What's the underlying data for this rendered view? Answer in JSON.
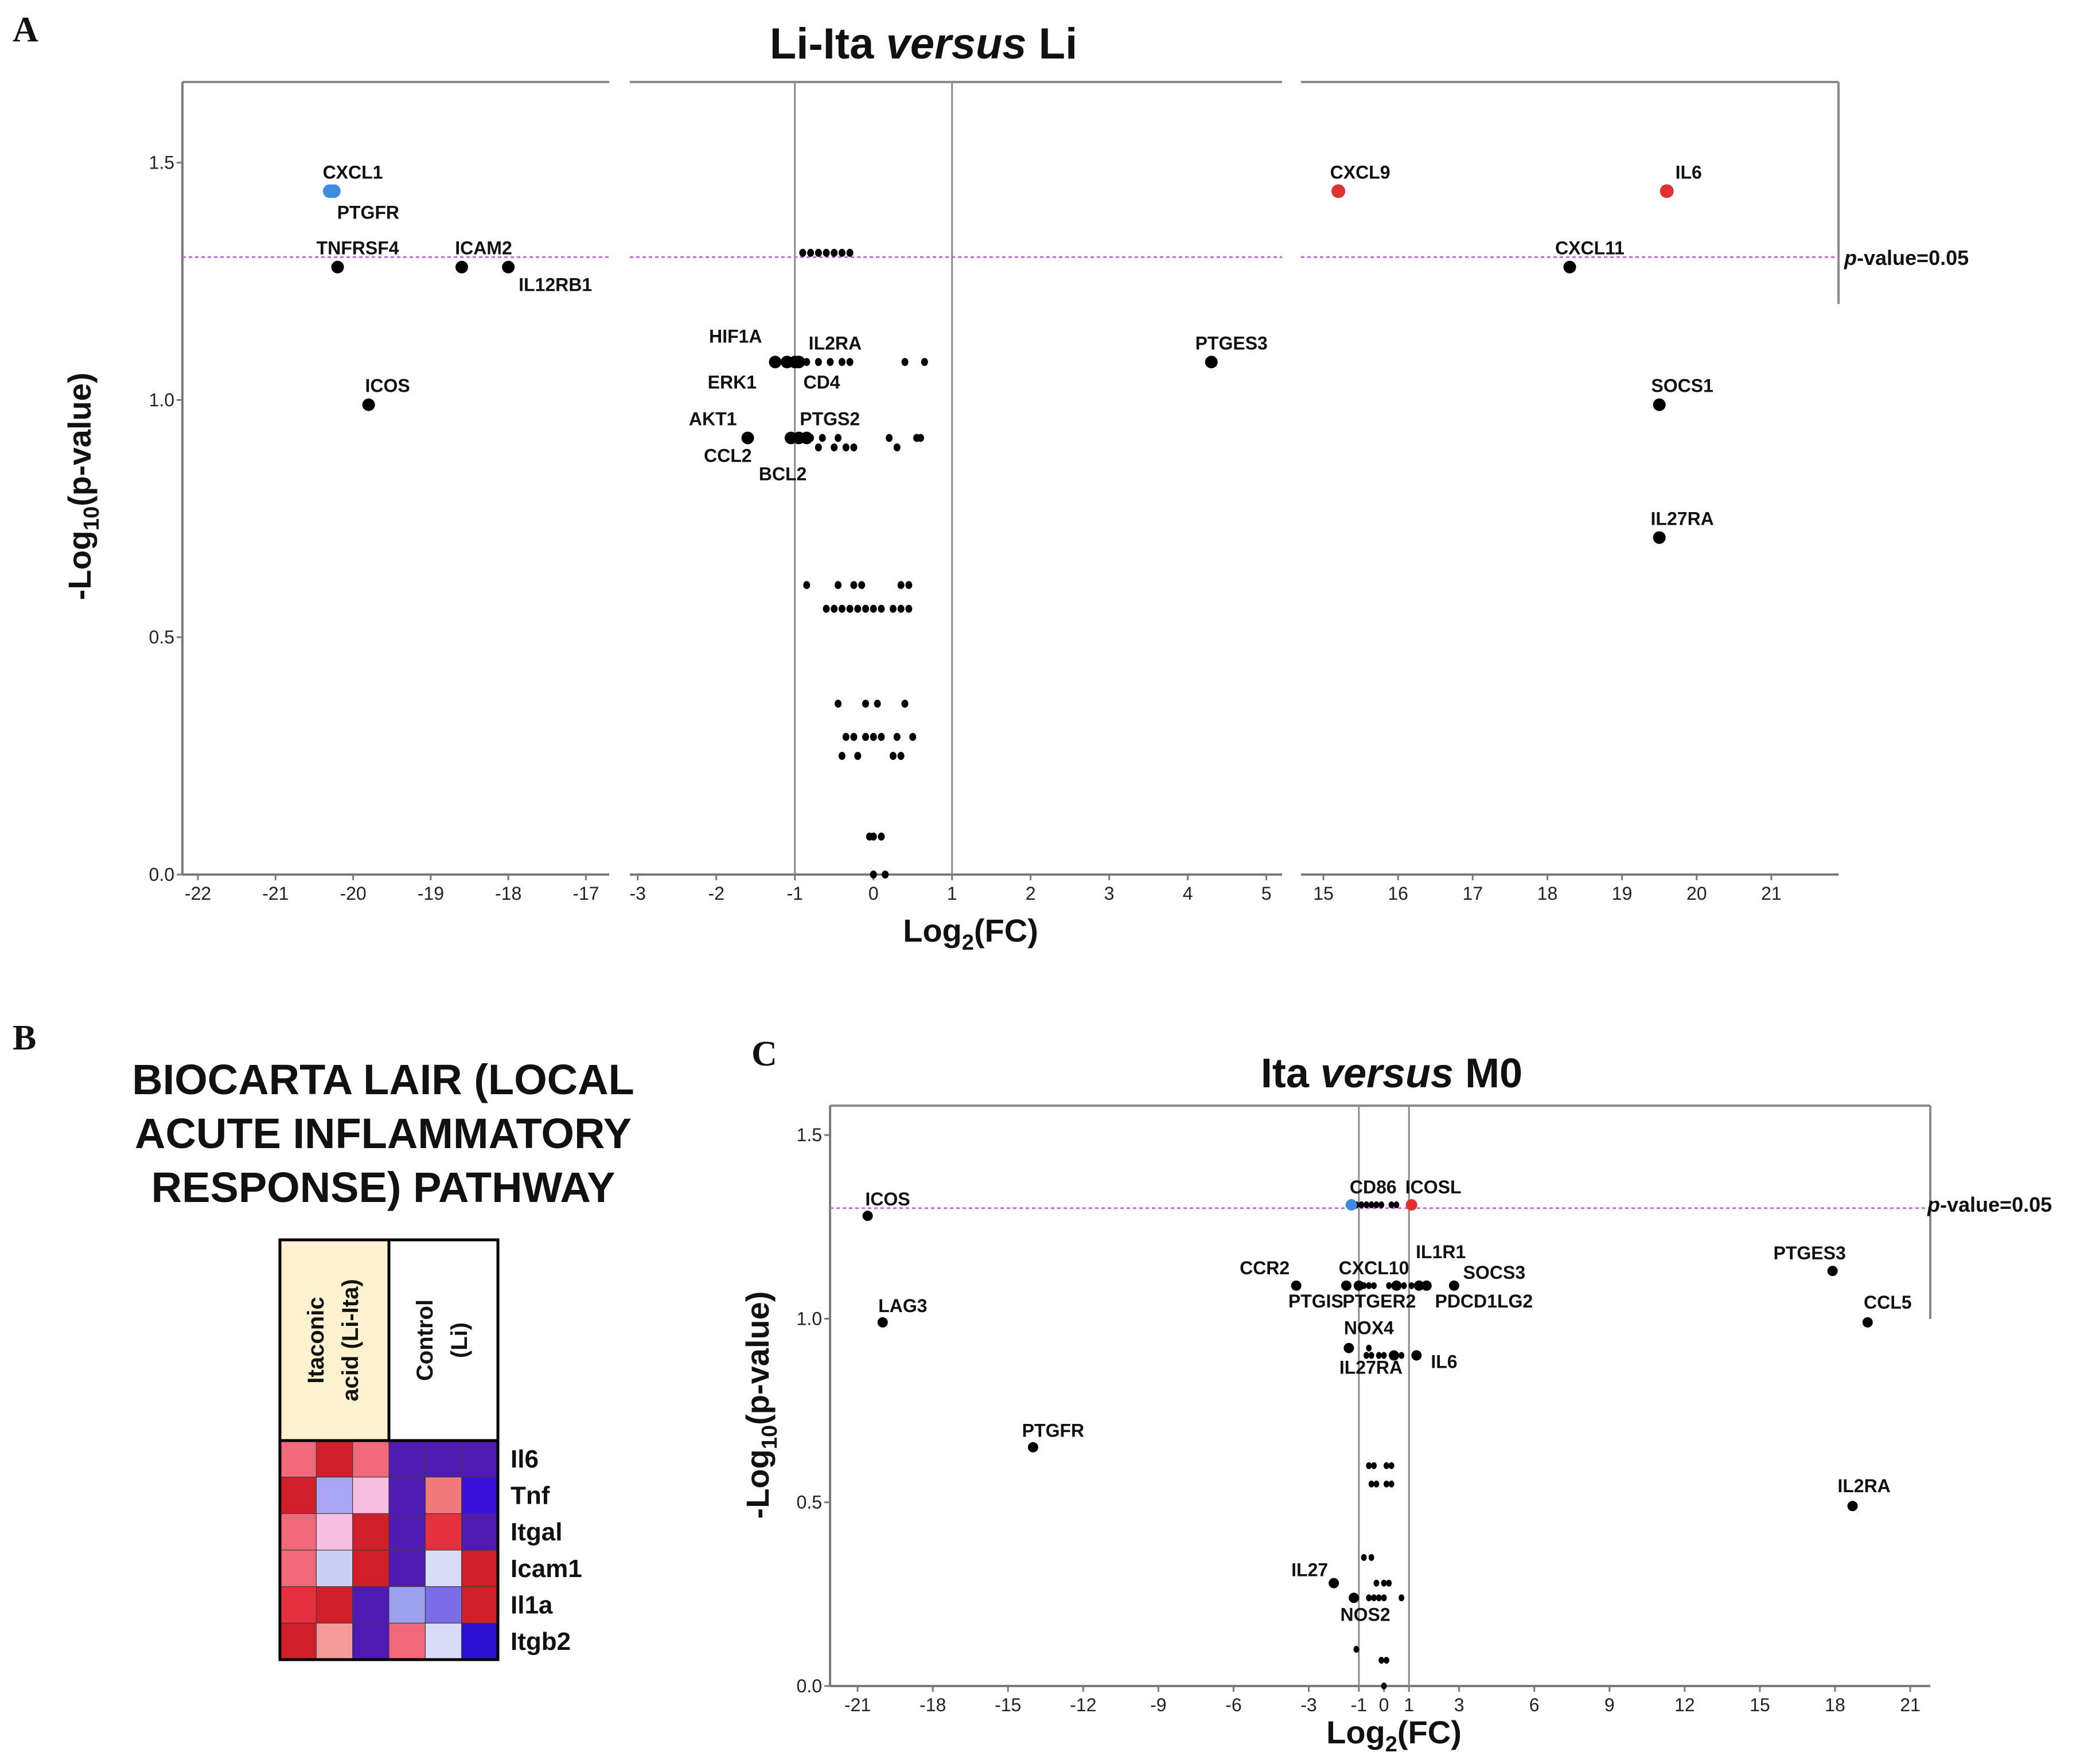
{
  "panel_labels": {
    "a": "A",
    "b": "B",
    "c": "C"
  },
  "colors": {
    "sig_down": "#3d8ce0",
    "sig_up": "#e03131",
    "point": "#000000",
    "threshold": "#c26bd9",
    "fc_line": "#8c8c8c",
    "heat_header_bg": "#fdf2d0"
  },
  "chart_data": [
    {
      "id": "A",
      "type": "scatter",
      "title": {
        "pre": "Li-Ita ",
        "italic": "versus",
        "post": " Li"
      },
      "xlabel": {
        "main": "Log",
        "sub": "2",
        "post": "(FC)"
      },
      "ylabel": {
        "pre": "-Log",
        "sub": "10",
        "post": "(p-value)"
      },
      "ylim": [
        0,
        1.67
      ],
      "yticks": [
        "0.0",
        "0.5",
        "1.0",
        "1.5"
      ],
      "grid": false,
      "broken_x_axis": true,
      "x_segments": [
        {
          "range": [
            -22.2,
            -16.7
          ],
          "ticks": [
            -22,
            -21,
            -20,
            -19,
            -18,
            -17
          ]
        },
        {
          "range": [
            -3.1,
            5.2
          ],
          "ticks": [
            -3,
            -2,
            -1,
            0,
            1,
            2,
            3,
            4,
            5
          ]
        },
        {
          "range": [
            14.7,
            21.9
          ],
          "ticks": [
            15,
            16,
            17,
            18,
            19,
            20,
            21
          ]
        }
      ],
      "fc_lines": [
        -1,
        1
      ],
      "threshold": {
        "y": 1.301,
        "label_italic": "p",
        "label_rest": "-value=0.05"
      },
      "points": {
        "significant_down": [
          {
            "x": -20.3,
            "y": 1.44,
            "label": "CXCL1"
          },
          {
            "x": -20.25,
            "y": 1.44,
            "label": "PTGFR"
          }
        ],
        "significant_up": [
          {
            "x": 15.2,
            "y": 1.44,
            "label": "CXCL9"
          },
          {
            "x": 19.6,
            "y": 1.44,
            "label": "IL6"
          }
        ],
        "labeled": [
          {
            "x": -20.2,
            "y": 1.28,
            "label": "TNFRSF4"
          },
          {
            "x": -18.6,
            "y": 1.28,
            "label": "ICAM2"
          },
          {
            "x": -18.0,
            "y": 1.28,
            "label": "IL12RB1"
          },
          {
            "x": -19.8,
            "y": 0.99,
            "label": "ICOS"
          },
          {
            "x": -1.25,
            "y": 1.08,
            "label": "HIF1A"
          },
          {
            "x": -1.1,
            "y": 1.08,
            "label": "ERK1"
          },
          {
            "x": -1.0,
            "y": 1.08,
            "label": "IL2RA"
          },
          {
            "x": -0.95,
            "y": 1.08,
            "label": "CD4"
          },
          {
            "x": -1.6,
            "y": 0.92,
            "label": "AKT1"
          },
          {
            "x": -1.05,
            "y": 0.92,
            "label": "CCL2"
          },
          {
            "x": -0.95,
            "y": 0.92,
            "label": "BCL2"
          },
          {
            "x": -0.85,
            "y": 0.92,
            "label": "PTGS2"
          },
          {
            "x": 4.3,
            "y": 1.08,
            "label": "PTGES3"
          },
          {
            "x": 18.3,
            "y": 1.28,
            "label": "CXCL11"
          },
          {
            "x": 19.5,
            "y": 0.99,
            "label": "SOCS1"
          },
          {
            "x": 19.5,
            "y": 0.71,
            "label": "IL27RA"
          }
        ],
        "unlabeled": [
          {
            "x": -0.9,
            "y": 1.31
          },
          {
            "x": -0.8,
            "y": 1.31
          },
          {
            "x": -0.7,
            "y": 1.31
          },
          {
            "x": -0.6,
            "y": 1.31
          },
          {
            "x": -0.5,
            "y": 1.31
          },
          {
            "x": -0.4,
            "y": 1.31
          },
          {
            "x": -0.3,
            "y": 1.31
          },
          {
            "x": -0.85,
            "y": 1.08
          },
          {
            "x": -0.7,
            "y": 1.08
          },
          {
            "x": -0.55,
            "y": 1.08
          },
          {
            "x": -0.4,
            "y": 1.08
          },
          {
            "x": -0.3,
            "y": 1.08
          },
          {
            "x": 0.4,
            "y": 1.08
          },
          {
            "x": 0.65,
            "y": 1.08
          },
          {
            "x": -0.8,
            "y": 0.92
          },
          {
            "x": -0.65,
            "y": 0.92
          },
          {
            "x": -0.45,
            "y": 0.92
          },
          {
            "x": 0.2,
            "y": 0.92
          },
          {
            "x": 0.55,
            "y": 0.92
          },
          {
            "x": 0.6,
            "y": 0.92
          },
          {
            "x": -0.7,
            "y": 0.9
          },
          {
            "x": -0.5,
            "y": 0.9
          },
          {
            "x": -0.35,
            "y": 0.9
          },
          {
            "x": -0.25,
            "y": 0.9
          },
          {
            "x": 0.3,
            "y": 0.9
          },
          {
            "x": -0.85,
            "y": 0.61
          },
          {
            "x": -0.45,
            "y": 0.61
          },
          {
            "x": -0.25,
            "y": 0.61
          },
          {
            "x": -0.15,
            "y": 0.61
          },
          {
            "x": 0.35,
            "y": 0.61
          },
          {
            "x": 0.45,
            "y": 0.61
          },
          {
            "x": -0.6,
            "y": 0.56
          },
          {
            "x": -0.5,
            "y": 0.56
          },
          {
            "x": -0.4,
            "y": 0.56
          },
          {
            "x": -0.3,
            "y": 0.56
          },
          {
            "x": -0.2,
            "y": 0.56
          },
          {
            "x": -0.1,
            "y": 0.56
          },
          {
            "x": 0.0,
            "y": 0.56
          },
          {
            "x": 0.1,
            "y": 0.56
          },
          {
            "x": 0.25,
            "y": 0.56
          },
          {
            "x": 0.35,
            "y": 0.56
          },
          {
            "x": 0.45,
            "y": 0.56
          },
          {
            "x": -0.45,
            "y": 0.36
          },
          {
            "x": -0.1,
            "y": 0.36
          },
          {
            "x": 0.05,
            "y": 0.36
          },
          {
            "x": 0.4,
            "y": 0.36
          },
          {
            "x": -0.35,
            "y": 0.29
          },
          {
            "x": -0.25,
            "y": 0.29
          },
          {
            "x": -0.1,
            "y": 0.29
          },
          {
            "x": 0.0,
            "y": 0.29
          },
          {
            "x": 0.1,
            "y": 0.29
          },
          {
            "x": 0.3,
            "y": 0.29
          },
          {
            "x": 0.5,
            "y": 0.29
          },
          {
            "x": -0.4,
            "y": 0.25
          },
          {
            "x": -0.2,
            "y": 0.25
          },
          {
            "x": 0.25,
            "y": 0.25
          },
          {
            "x": 0.35,
            "y": 0.25
          },
          {
            "x": -0.05,
            "y": 0.08
          },
          {
            "x": 0.0,
            "y": 0.08
          },
          {
            "x": 0.1,
            "y": 0.08
          },
          {
            "x": 0.0,
            "y": 0.0
          },
          {
            "x": 0.15,
            "y": 0.0
          }
        ]
      }
    },
    {
      "id": "C",
      "type": "scatter",
      "title": {
        "pre": "Ita ",
        "italic": "versus",
        "post": " M0"
      },
      "xlabel": {
        "main": "Log",
        "sub": "2",
        "post": "(FC)"
      },
      "ylabel": {
        "pre": "-Log",
        "sub": "10",
        "post": "(p-value)"
      },
      "ylim": [
        0,
        1.58
      ],
      "xlim": [
        -22.1,
        21.8
      ],
      "xticks": [
        -21,
        -18,
        -15,
        -12,
        -9,
        -6,
        -3,
        -1,
        0,
        1,
        3,
        6,
        9,
        12,
        15,
        18,
        21
      ],
      "yticks": [
        "0.0",
        "0.5",
        "1.0",
        "1.5"
      ],
      "grid": false,
      "fc_lines": [
        -1,
        1
      ],
      "threshold": {
        "y": 1.301,
        "label_italic": "p",
        "label_rest": "-value=0.05"
      },
      "points": {
        "significant_down": [
          {
            "x": -1.3,
            "y": 1.31,
            "label": "CD86"
          }
        ],
        "significant_up": [
          {
            "x": 1.1,
            "y": 1.31,
            "label": "ICOSL"
          }
        ],
        "labeled": [
          {
            "x": -20.6,
            "y": 1.28,
            "label": "ICOS"
          },
          {
            "x": -20.0,
            "y": 0.99,
            "label": "LAG3"
          },
          {
            "x": -14.0,
            "y": 0.65,
            "label": "PTGFR"
          },
          {
            "x": -3.5,
            "y": 1.09,
            "label": "CCR2"
          },
          {
            "x": -1.5,
            "y": 1.09,
            "label": "CXCL10"
          },
          {
            "x": -1.0,
            "y": 1.09,
            "label": "PTGIS"
          },
          {
            "x": 0.5,
            "y": 1.09,
            "label": "PTGER2"
          },
          {
            "x": 1.4,
            "y": 1.09,
            "label": "IL1R1"
          },
          {
            "x": 1.7,
            "y": 1.09,
            "label": "PDCD1LG2"
          },
          {
            "x": 2.8,
            "y": 1.09,
            "label": "SOCS3"
          },
          {
            "x": -1.4,
            "y": 0.92,
            "label": "NOX4"
          },
          {
            "x": 0.4,
            "y": 0.9,
            "label": "IL27RA"
          },
          {
            "x": 1.3,
            "y": 0.9,
            "label": "IL6"
          },
          {
            "x": 17.9,
            "y": 1.13,
            "label": "PTGES3"
          },
          {
            "x": 19.3,
            "y": 0.99,
            "label": "CCL5"
          },
          {
            "x": 18.7,
            "y": 0.49,
            "label": "IL2RA"
          },
          {
            "x": -2.0,
            "y": 0.28,
            "label": "IL27"
          },
          {
            "x": -1.2,
            "y": 0.24,
            "label": "NOS2"
          }
        ],
        "unlabeled": [
          {
            "x": -1.1,
            "y": 1.31
          },
          {
            "x": -0.9,
            "y": 1.31
          },
          {
            "x": -0.7,
            "y": 1.31
          },
          {
            "x": -0.5,
            "y": 1.31
          },
          {
            "x": -0.3,
            "y": 1.31
          },
          {
            "x": -0.1,
            "y": 1.31
          },
          {
            "x": 0.3,
            "y": 1.31
          },
          {
            "x": 0.5,
            "y": 1.31
          },
          {
            "x": -0.8,
            "y": 1.09
          },
          {
            "x": -0.6,
            "y": 1.09
          },
          {
            "x": -0.4,
            "y": 1.09
          },
          {
            "x": 0.2,
            "y": 1.09
          },
          {
            "x": 0.8,
            "y": 1.09
          },
          {
            "x": 1.1,
            "y": 1.09
          },
          {
            "x": -0.7,
            "y": 0.9
          },
          {
            "x": -0.5,
            "y": 0.9
          },
          {
            "x": -0.2,
            "y": 0.9
          },
          {
            "x": 0.0,
            "y": 0.9
          },
          {
            "x": 0.7,
            "y": 0.9
          },
          {
            "x": -0.6,
            "y": 0.92
          },
          {
            "x": -0.6,
            "y": 0.6
          },
          {
            "x": -0.4,
            "y": 0.6
          },
          {
            "x": 0.1,
            "y": 0.6
          },
          {
            "x": 0.3,
            "y": 0.6
          },
          {
            "x": -0.5,
            "y": 0.55
          },
          {
            "x": -0.3,
            "y": 0.55
          },
          {
            "x": 0.1,
            "y": 0.55
          },
          {
            "x": 0.3,
            "y": 0.55
          },
          {
            "x": -0.8,
            "y": 0.35
          },
          {
            "x": -0.5,
            "y": 0.35
          },
          {
            "x": -0.3,
            "y": 0.28
          },
          {
            "x": 0.0,
            "y": 0.28
          },
          {
            "x": 0.2,
            "y": 0.28
          },
          {
            "x": -0.6,
            "y": 0.24
          },
          {
            "x": -0.4,
            "y": 0.24
          },
          {
            "x": -0.2,
            "y": 0.24
          },
          {
            "x": 0.0,
            "y": 0.24
          },
          {
            "x": 0.7,
            "y": 0.24
          },
          {
            "x": -1.1,
            "y": 0.1
          },
          {
            "x": -0.1,
            "y": 0.07
          },
          {
            "x": 0.1,
            "y": 0.07
          },
          {
            "x": 0.0,
            "y": 0.0
          }
        ]
      }
    },
    {
      "id": "B",
      "type": "heatmap",
      "title_lines": [
        "BIOCARTA LAIR (LOCAL",
        "ACUTE INFLAMMATORY",
        "RESPONSE) PATHWAY"
      ],
      "column_groups": [
        {
          "lines": [
            "Itaconic",
            "acid (Li-Ita)"
          ]
        },
        {
          "lines": [
            "Control",
            "(Li)"
          ]
        }
      ],
      "rows": [
        "Il6",
        "Tnf",
        "Itgal",
        "Icam1",
        "Il1a",
        "Itgb2"
      ],
      "values": [
        [
          "#f0697a",
          "#d11f2a",
          "#f0697a",
          "#4e1ab2",
          "#4e1ab2",
          "#4e1ab2"
        ],
        [
          "#d11f2a",
          "#a9a7f3",
          "#f6bedf",
          "#4e1ab2",
          "#f17a7a",
          "#3a11d8"
        ],
        [
          "#f0697a",
          "#f6bedf",
          "#d11f2a",
          "#4e1ab2",
          "#e5313f",
          "#4e1ab2"
        ],
        [
          "#f0697a",
          "#c9cff5",
          "#d11f2a",
          "#4e1ab2",
          "#d8dcf6",
          "#d11f2a"
        ],
        [
          "#e5313f",
          "#d11f2a",
          "#4e1ab2",
          "#9ba1ec",
          "#7c6ce8",
          "#d11f2a"
        ],
        [
          "#d11f2a",
          "#f59a9a",
          "#4e1ab2",
          "#f0697a",
          "#d8dcf6",
          "#2c0fd0"
        ]
      ]
    }
  ]
}
